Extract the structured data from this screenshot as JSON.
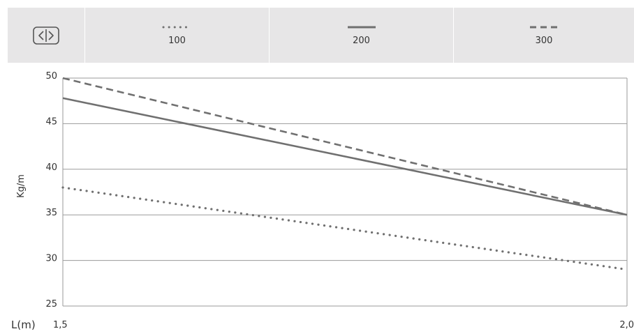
{
  "legend": {
    "toggle_icon": "legend-toggle-icon",
    "items": [
      {
        "label": "100",
        "style": "dotted"
      },
      {
        "label": "200",
        "style": "solid"
      },
      {
        "label": "300",
        "style": "dashed"
      }
    ]
  },
  "colors": {
    "series": "#707070",
    "legend_bg": "#e7e6e7",
    "grid": "#9a9a9a"
  },
  "chart_data": {
    "type": "line",
    "xlabel": "L(m)",
    "ylabel": "Kg/m",
    "xlim": [
      1.5,
      2.0
    ],
    "ylim": [
      25,
      50
    ],
    "x_ticks": [
      "1,5",
      "2,0"
    ],
    "y_ticks": [
      "25",
      "30",
      "35",
      "40",
      "45",
      "50"
    ],
    "y_tick_values": [
      25,
      30,
      35,
      40,
      45,
      50
    ],
    "grid": "horizontal",
    "legend_position": "top",
    "series": [
      {
        "name": "100",
        "style": "dotted",
        "x": [
          1.5,
          2.0
        ],
        "y": [
          38,
          29
        ]
      },
      {
        "name": "200",
        "style": "solid",
        "x": [
          1.5,
          2.0
        ],
        "y": [
          47.8,
          35
        ]
      },
      {
        "name": "300",
        "style": "dashed",
        "x": [
          1.5,
          2.0
        ],
        "y": [
          50,
          35
        ]
      }
    ]
  }
}
